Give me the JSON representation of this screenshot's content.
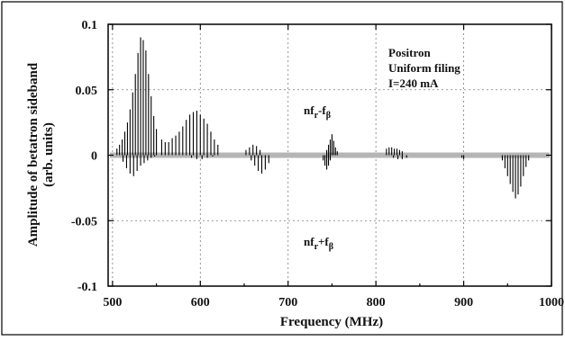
{
  "chart_data": {
    "type": "bar",
    "xlabel": "Frequency  (MHz)",
    "ylabel_line1": "Amplitude of betatron sideband",
    "ylabel_line2": "(arb.  units)",
    "xlim": [
      495,
      1000
    ],
    "ylim": [
      -0.1,
      0.1
    ],
    "xticks": [
      {
        "value": 500,
        "label": "500"
      },
      {
        "value": 600,
        "label": "600"
      },
      {
        "value": 700,
        "label": "700"
      },
      {
        "value": 800,
        "label": "800"
      },
      {
        "value": 900,
        "label": "900"
      },
      {
        "value": 1000,
        "label": "1000"
      }
    ],
    "yticks": [
      {
        "value": 0.1,
        "label": "0.1"
      },
      {
        "value": 0.05,
        "label": "0.05"
      },
      {
        "value": 0,
        "label": "0"
      },
      {
        "value": -0.05,
        "label": "-0.05"
      },
      {
        "value": -0.1,
        "label": "-0.1"
      }
    ],
    "grid": true,
    "legend_lines": [
      "Positron",
      "Uniform  filing",
      "I=240  mA"
    ],
    "annotation_upper": {
      "main": "nf",
      "sub1": "r",
      "mid": "-f",
      "sub2": "β"
    },
    "annotation_lower": {
      "main": "nf",
      "sub1": "r",
      "mid": "+f",
      "sub2": "β"
    },
    "series": [
      {
        "group": "nf_r - f_beta (upper sideband, positive lobe)",
        "x": [
          505,
          508,
          511,
          514,
          517,
          520,
          523,
          526,
          529,
          532,
          535,
          538,
          541,
          544,
          547,
          550,
          556,
          560,
          564,
          568,
          572,
          576,
          580,
          584,
          588,
          592,
          596,
          600,
          604,
          608,
          612,
          616,
          620,
          652,
          656,
          660,
          664,
          668,
          744,
          746,
          748,
          750,
          752,
          754,
          756,
          812,
          815,
          818,
          821,
          824,
          827,
          830
        ],
        "y": [
          0.005,
          0.008,
          0.012,
          0.018,
          0.025,
          0.035,
          0.048,
          0.062,
          0.078,
          0.09,
          0.088,
          0.08,
          0.062,
          0.045,
          0.03,
          0.02,
          0.012,
          0.01,
          0.01,
          0.013,
          0.015,
          0.018,
          0.022,
          0.027,
          0.031,
          0.033,
          0.034,
          0.031,
          0.028,
          0.024,
          0.018,
          0.012,
          0.008,
          0.004,
          0.006,
          0.008,
          0.007,
          0.004,
          0.004,
          0.008,
          0.012,
          0.016,
          0.011,
          0.006,
          0.003,
          0.005,
          0.006,
          0.006,
          0.005,
          0.005,
          0.004,
          0.003
        ]
      },
      {
        "group": "nf_r + f_beta (lower sideband, negative lobe)",
        "x": [
          512,
          516,
          520,
          524,
          528,
          532,
          536,
          540,
          544,
          548,
          590,
          596,
          602,
          608,
          614,
          658,
          662,
          666,
          670,
          674,
          678,
          740,
          742,
          744,
          746,
          748,
          820,
          825,
          830,
          835,
          898,
          900,
          944,
          947,
          950,
          953,
          956,
          959,
          962,
          965,
          968,
          971,
          974
        ],
        "y": [
          -0.005,
          -0.01,
          -0.014,
          -0.016,
          -0.012,
          -0.008,
          -0.006,
          -0.004,
          -0.002,
          -0.001,
          -0.002,
          -0.003,
          -0.003,
          -0.002,
          -0.001,
          -0.004,
          -0.008,
          -0.012,
          -0.014,
          -0.011,
          -0.006,
          -0.004,
          -0.008,
          -0.011,
          -0.008,
          -0.004,
          -0.002,
          -0.003,
          -0.003,
          -0.002,
          -0.002,
          -0.003,
          -0.004,
          -0.01,
          -0.016,
          -0.022,
          -0.028,
          -0.033,
          -0.03,
          -0.024,
          -0.016,
          -0.009,
          -0.004
        ]
      }
    ]
  }
}
